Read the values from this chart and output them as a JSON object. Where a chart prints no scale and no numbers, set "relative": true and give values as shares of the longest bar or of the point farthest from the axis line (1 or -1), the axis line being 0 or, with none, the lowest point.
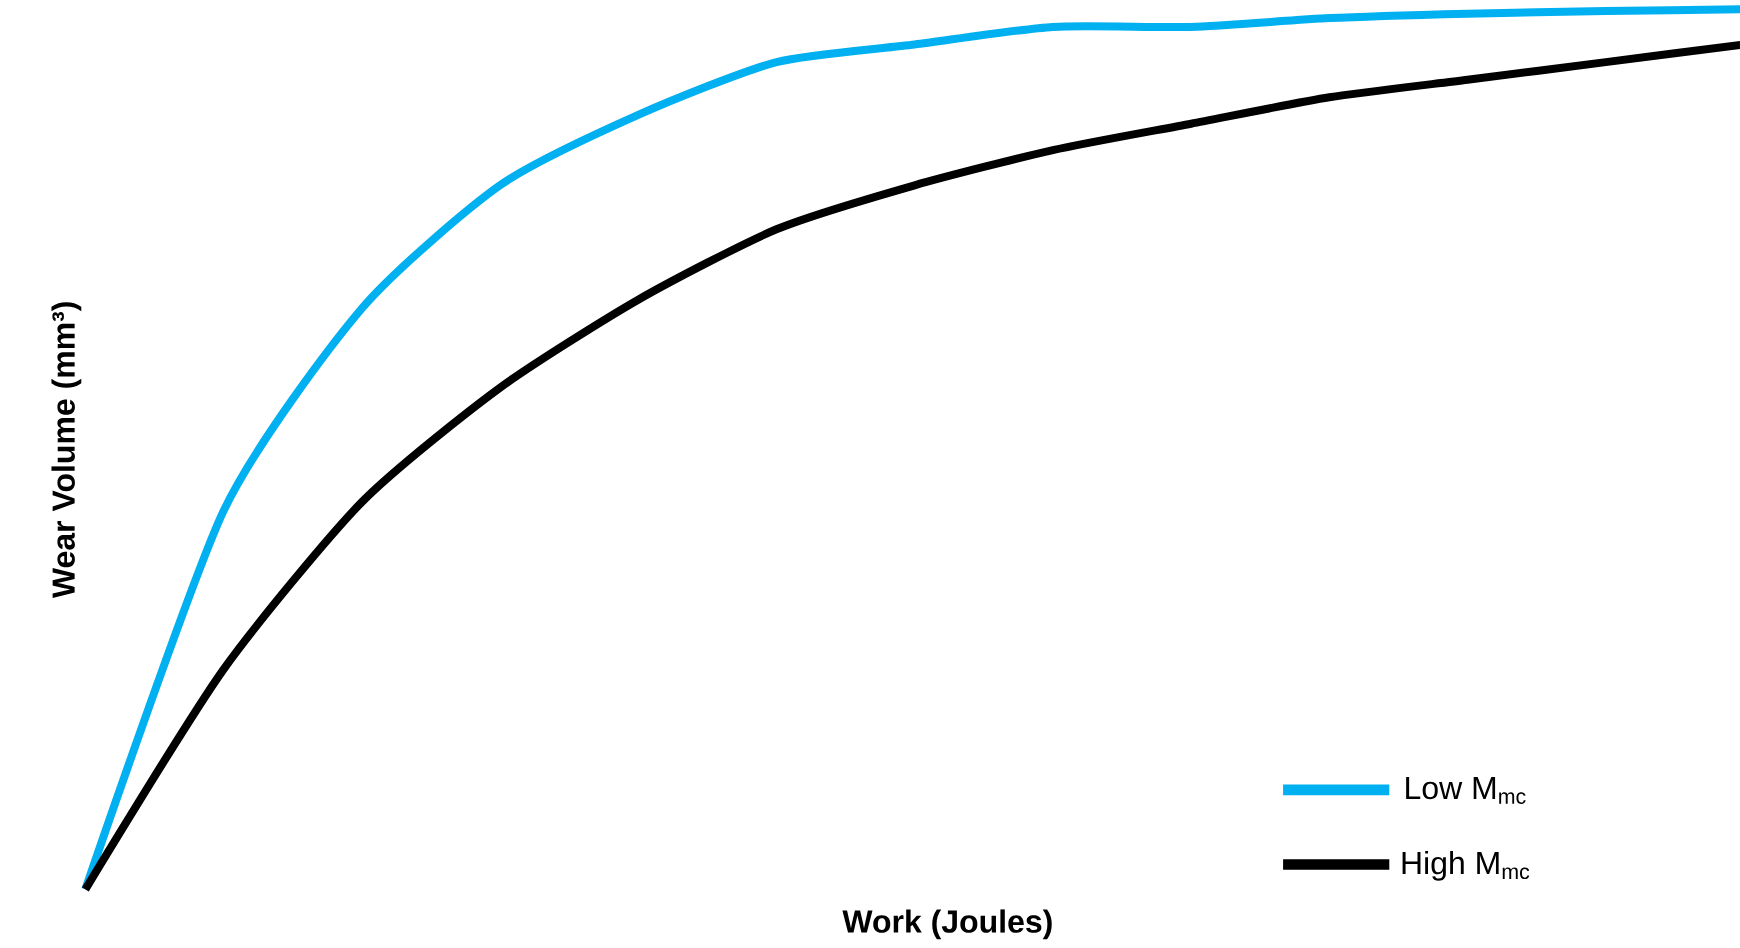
{
  "chart_data": {
    "type": "line",
    "relative": true,
    "xlabel": "Work (Joules)",
    "ylabel": "Wear Volume (mm³)",
    "categories": [
      null,
      null,
      null,
      null,
      null,
      null,
      null,
      null,
      null,
      null,
      null,
      null,
      null
    ],
    "series": [
      {
        "name": "Low M$_{mc}$",
        "color": "#00b0f0",
        "values": [
          0,
          0.43,
          0.66,
          0.8,
          0.88,
          0.94,
          0.96,
          0.98,
          0.98,
          0.99,
          0.995,
          0.998,
          1
        ]
      },
      {
        "name": "High M$_{mc}$",
        "color": "#000000",
        "values": [
          0,
          0.25,
          0.44,
          0.57,
          0.67,
          0.75,
          0.8,
          0.84,
          0.87,
          0.9,
          0.92,
          0.94,
          0.96
        ]
      }
    ],
    "legend": "bottom right",
    "marker": "none",
    "line_style": "solid"
  }
}
